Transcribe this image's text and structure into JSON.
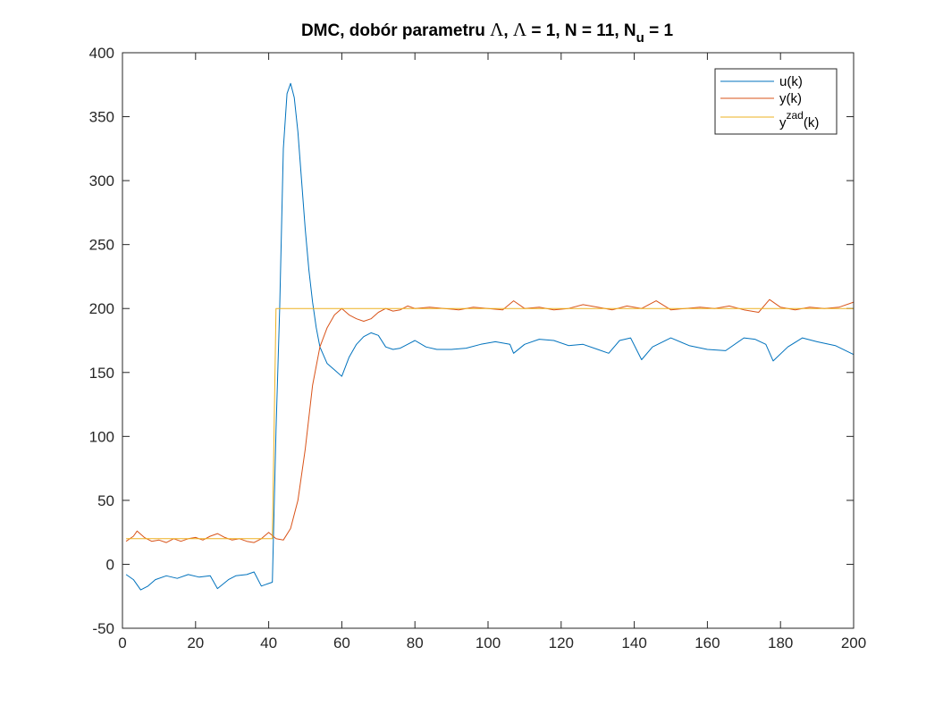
{
  "chart_data": {
    "type": "line",
    "title": {
      "prefix": "DMC, dobór parametru ",
      "lambda1": "Λ",
      "mid": ", ",
      "lambda2": "Λ",
      "rest": " = 1, N = 11, N",
      "sub": "u",
      "suffix": " = 1"
    },
    "xlabel": "",
    "ylabel": "",
    "xlim": [
      0,
      200
    ],
    "ylim": [
      -50,
      400
    ],
    "xticks": [
      0,
      20,
      40,
      60,
      80,
      100,
      120,
      140,
      160,
      180,
      200
    ],
    "yticks": [
      -50,
      0,
      50,
      100,
      150,
      200,
      250,
      300,
      350,
      400
    ],
    "grid": false,
    "legend_position": "top-right",
    "series": [
      {
        "name": "u(k)",
        "legend": {
          "base": "u(k)",
          "sup": "",
          "after": ""
        },
        "color": "#0072BD",
        "x": [
          1,
          3,
          5,
          7,
          9,
          12,
          15,
          18,
          21,
          24,
          26,
          29,
          31,
          34,
          36,
          38,
          39,
          40,
          41,
          42,
          43,
          44,
          45,
          46,
          47,
          48,
          49,
          50,
          51,
          52,
          53,
          54,
          56,
          58,
          60,
          62,
          64,
          66,
          68,
          70,
          72,
          74,
          76,
          78,
          80,
          83,
          86,
          90,
          94,
          98,
          102,
          106,
          107,
          110,
          114,
          118,
          122,
          126,
          130,
          133,
          136,
          139,
          142,
          145,
          150,
          155,
          160,
          165,
          170,
          173,
          176,
          178,
          182,
          186,
          190,
          195,
          200
        ],
        "y": [
          -8,
          -12,
          -20,
          -17,
          -12,
          -9,
          -11,
          -8,
          -10,
          -9,
          -19,
          -12,
          -9,
          -8,
          -6,
          -17,
          -16,
          -15,
          -14,
          105,
          200,
          325,
          368,
          376,
          365,
          338,
          300,
          262,
          230,
          205,
          185,
          170,
          157,
          152,
          147,
          162,
          172,
          178,
          181,
          179,
          170,
          168,
          169,
          172,
          175,
          170,
          168,
          168,
          169,
          172,
          174,
          172,
          165,
          172,
          176,
          175,
          171,
          172,
          168,
          165,
          175,
          177,
          160,
          170,
          177,
          171,
          168,
          167,
          177,
          176,
          172,
          159,
          170,
          177,
          174,
          171,
          164
        ]
      },
      {
        "name": "y(k)",
        "legend": {
          "base": "y(k)",
          "sup": "",
          "after": ""
        },
        "color": "#D95319",
        "x": [
          1,
          3,
          4,
          6,
          8,
          10,
          12,
          14,
          16,
          18,
          20,
          22,
          24,
          26,
          28,
          30,
          32,
          34,
          36,
          38,
          40,
          42,
          44,
          46,
          48,
          50,
          52,
          54,
          56,
          58,
          60,
          62,
          64,
          66,
          68,
          70,
          72,
          74,
          76,
          78,
          80,
          84,
          88,
          92,
          96,
          100,
          104,
          107,
          110,
          114,
          118,
          122,
          126,
          130,
          134,
          138,
          142,
          146,
          150,
          154,
          158,
          162,
          166,
          170,
          174,
          177,
          180,
          184,
          188,
          192,
          196,
          200
        ],
        "y": [
          18,
          22,
          26,
          21,
          18,
          19,
          17,
          20,
          18,
          20,
          21,
          19,
          22,
          24,
          21,
          19,
          20,
          18,
          17,
          20,
          25,
          20,
          19,
          28,
          50,
          90,
          140,
          170,
          185,
          195,
          200,
          195,
          192,
          190,
          192,
          197,
          200,
          198,
          199,
          202,
          200,
          201,
          200,
          199,
          201,
          200,
          199,
          206,
          200,
          201,
          199,
          200,
          203,
          201,
          199,
          202,
          200,
          206,
          199,
          200,
          201,
          200,
          202,
          199,
          197,
          207,
          201,
          199,
          201,
          200,
          201,
          205
        ]
      },
      {
        "name": "y^zad(k)",
        "legend": {
          "base": "y",
          "sup": "zad",
          "after": "(k)"
        },
        "color": "#EDB120",
        "x": [
          1,
          41,
          42,
          200
        ],
        "y": [
          20,
          20,
          200,
          200
        ]
      }
    ]
  }
}
